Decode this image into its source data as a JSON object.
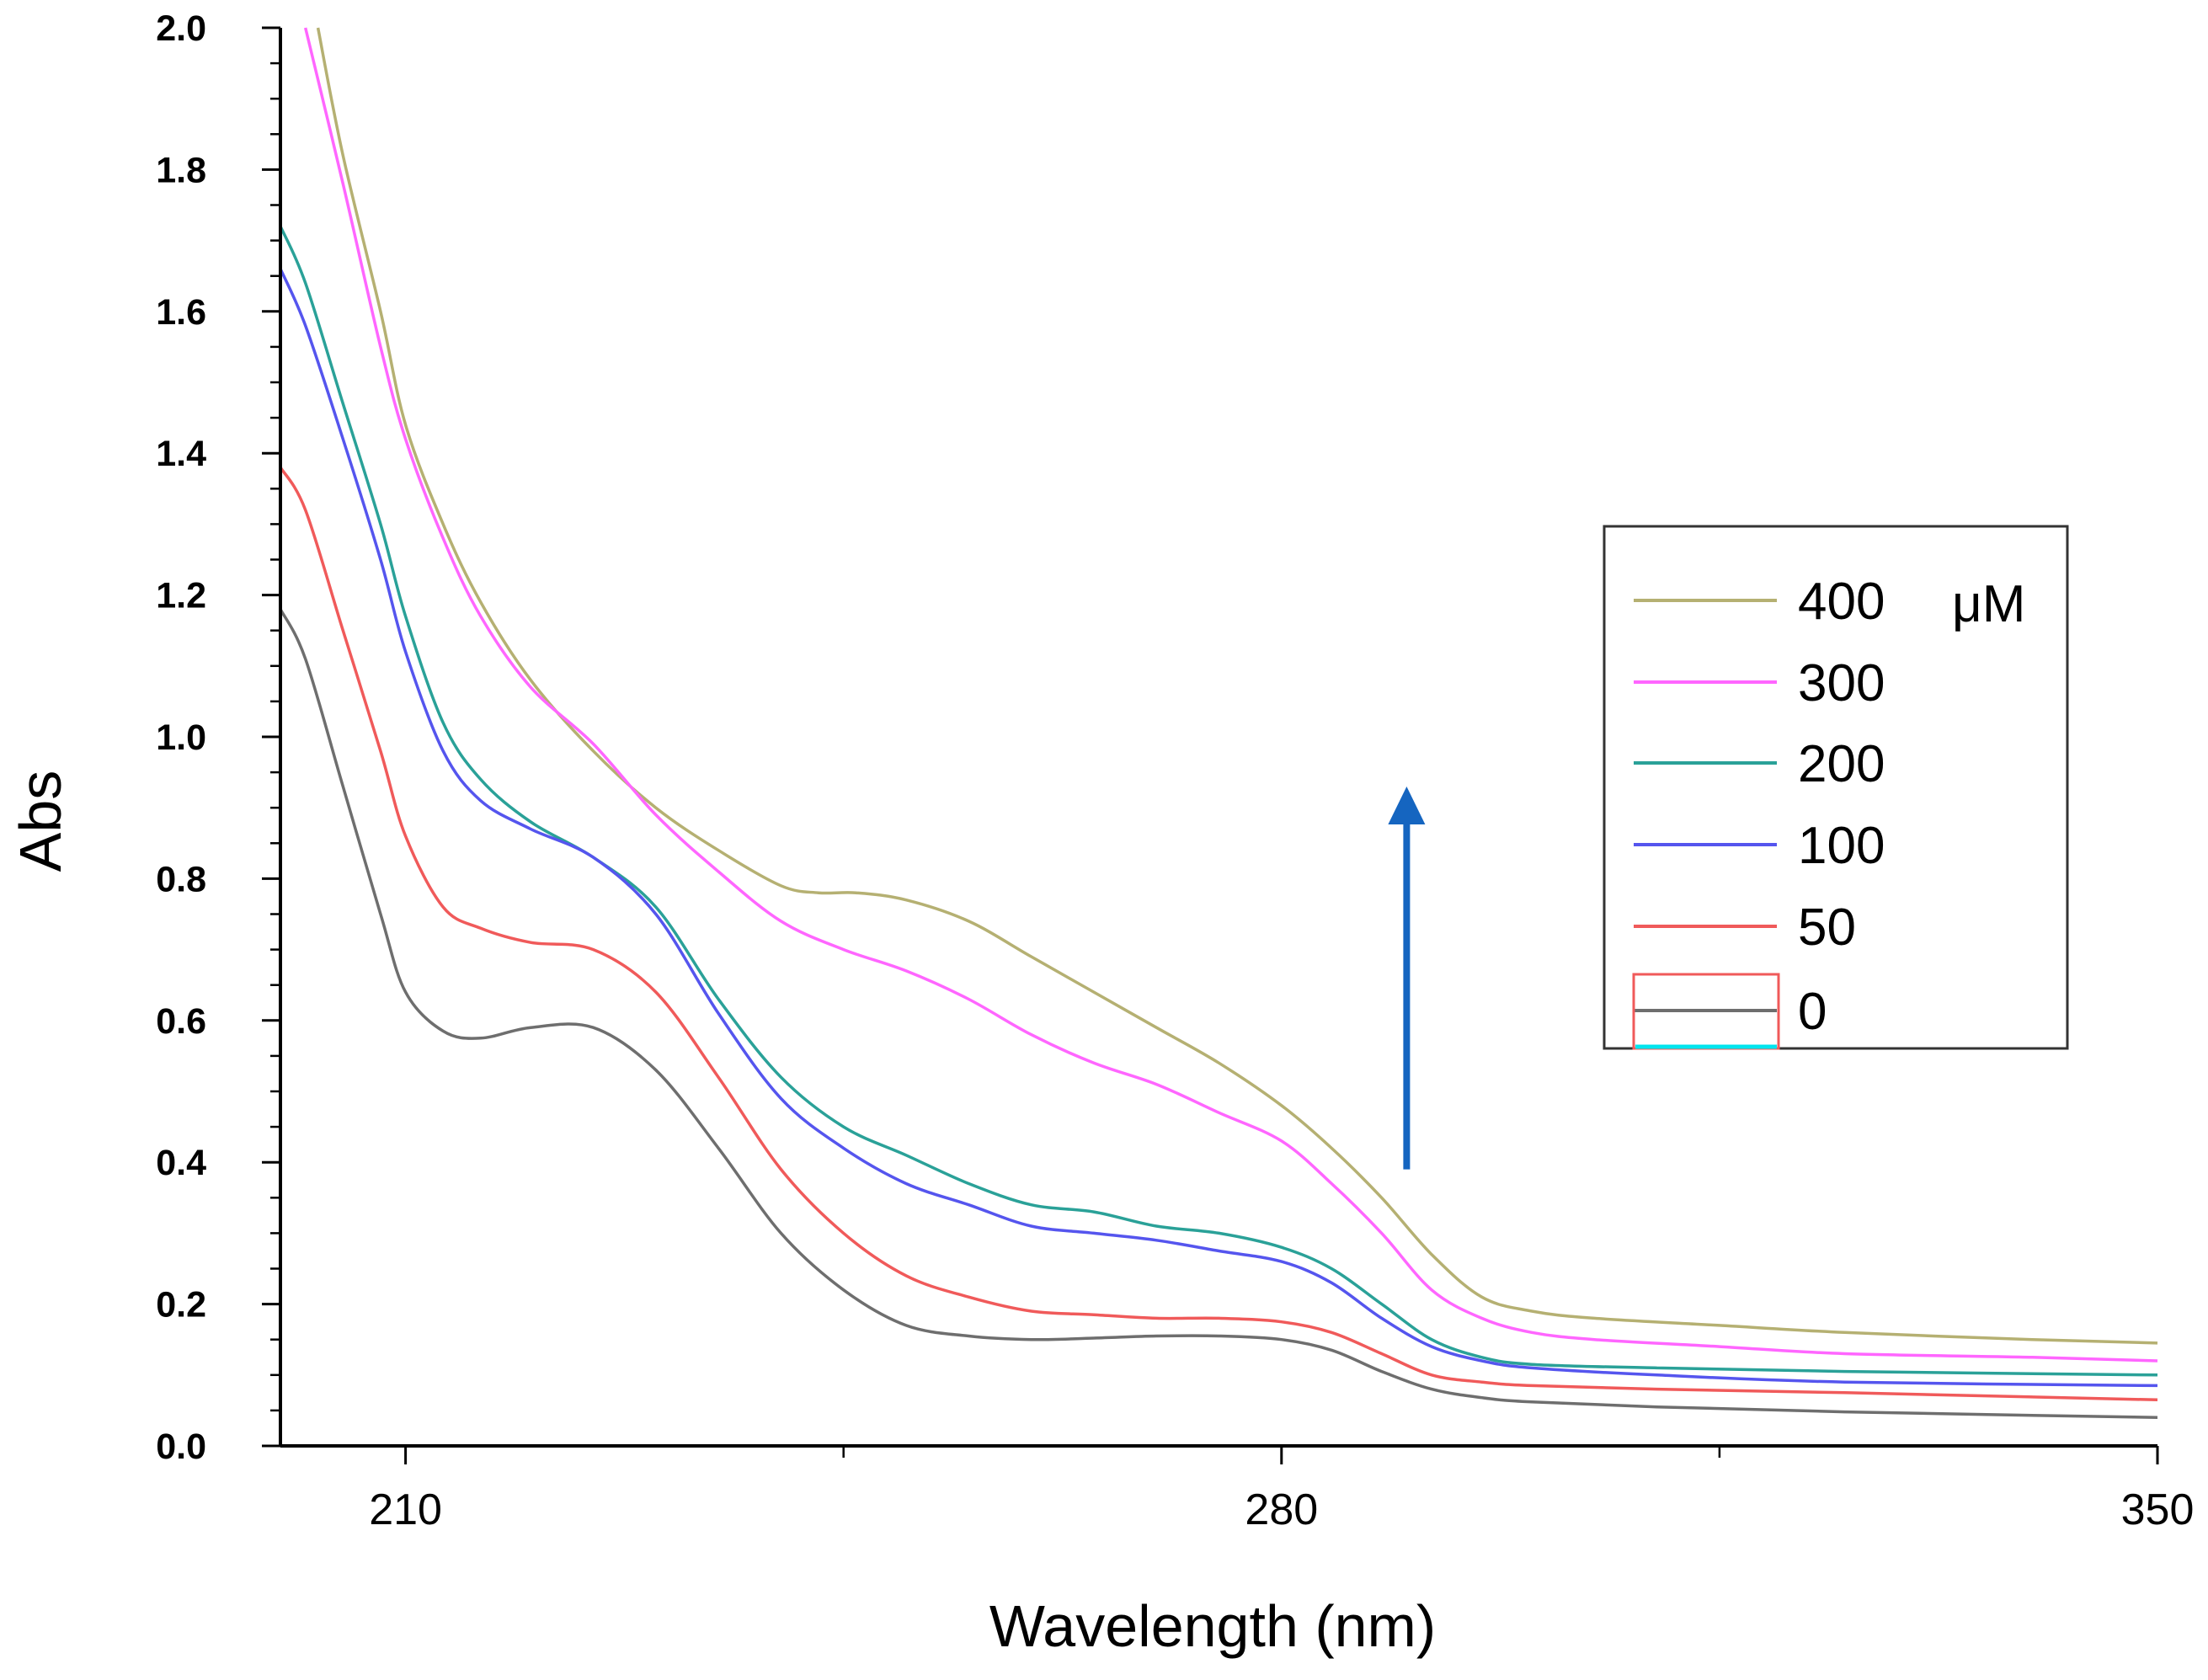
{
  "chart_data": {
    "type": "line",
    "title": "",
    "xlabel": "Wavelength (nm)",
    "ylabel": "Abs",
    "xlim": [
      200,
      350
    ],
    "ylim": [
      0.0,
      2.0
    ],
    "x_major_ticks": [
      210,
      280,
      350
    ],
    "x_minor_ticks": [
      245,
      315
    ],
    "y_ticks": [
      0.0,
      0.2,
      0.4,
      0.6,
      0.8,
      1.0,
      1.2,
      1.4,
      1.6,
      1.8,
      2.0
    ],
    "y_tick_labels": [
      "0.0",
      "0.2",
      "0.4",
      "0.6",
      "0.8",
      "1.0",
      "1.2",
      "1.4",
      "1.6",
      "1.8",
      "2.0"
    ],
    "x_tick_labels": [
      "210",
      "280",
      "350"
    ],
    "legend": {
      "position": "right",
      "unit": "μM"
    },
    "arrow": {
      "x": 290,
      "y_from": 0.39,
      "y_to": 0.93,
      "color": "#1565c0"
    },
    "series": [
      {
        "name": "400",
        "color": "#b5b072",
        "points": [
          [
            203,
            2.0
          ],
          [
            205,
            1.82
          ],
          [
            208,
            1.6
          ],
          [
            210,
            1.44
          ],
          [
            213,
            1.3
          ],
          [
            216,
            1.19
          ],
          [
            220,
            1.08
          ],
          [
            225,
            0.98
          ],
          [
            230,
            0.9
          ],
          [
            235,
            0.84
          ],
          [
            240,
            0.79
          ],
          [
            243,
            0.78
          ],
          [
            246,
            0.78
          ],
          [
            250,
            0.77
          ],
          [
            255,
            0.74
          ],
          [
            260,
            0.69
          ],
          [
            265,
            0.64
          ],
          [
            270,
            0.59
          ],
          [
            275,
            0.54
          ],
          [
            280,
            0.48
          ],
          [
            284,
            0.42
          ],
          [
            288,
            0.35
          ],
          [
            292,
            0.27
          ],
          [
            296,
            0.21
          ],
          [
            300,
            0.19
          ],
          [
            305,
            0.18
          ],
          [
            315,
            0.17
          ],
          [
            325,
            0.16
          ],
          [
            340,
            0.15
          ],
          [
            350,
            0.145
          ]
        ]
      },
      {
        "name": "300",
        "color": "#ff66ff",
        "points": [
          [
            202,
            2.0
          ],
          [
            205,
            1.78
          ],
          [
            208,
            1.55
          ],
          [
            210,
            1.42
          ],
          [
            213,
            1.28
          ],
          [
            216,
            1.17
          ],
          [
            220,
            1.07
          ],
          [
            225,
            0.99
          ],
          [
            230,
            0.89
          ],
          [
            235,
            0.81
          ],
          [
            240,
            0.74
          ],
          [
            245,
            0.7
          ],
          [
            250,
            0.67
          ],
          [
            255,
            0.63
          ],
          [
            260,
            0.58
          ],
          [
            265,
            0.54
          ],
          [
            270,
            0.51
          ],
          [
            275,
            0.47
          ],
          [
            280,
            0.43
          ],
          [
            284,
            0.37
          ],
          [
            288,
            0.3
          ],
          [
            292,
            0.22
          ],
          [
            296,
            0.18
          ],
          [
            300,
            0.16
          ],
          [
            305,
            0.15
          ],
          [
            315,
            0.14
          ],
          [
            325,
            0.13
          ],
          [
            340,
            0.125
          ],
          [
            350,
            0.12
          ]
        ]
      },
      {
        "name": "200",
        "color": "#2aa198",
        "points": [
          [
            200,
            1.72
          ],
          [
            202,
            1.64
          ],
          [
            205,
            1.47
          ],
          [
            208,
            1.3
          ],
          [
            210,
            1.17
          ],
          [
            213,
            1.02
          ],
          [
            216,
            0.94
          ],
          [
            220,
            0.88
          ],
          [
            225,
            0.83
          ],
          [
            230,
            0.76
          ],
          [
            235,
            0.63
          ],
          [
            240,
            0.52
          ],
          [
            245,
            0.45
          ],
          [
            250,
            0.41
          ],
          [
            255,
            0.37
          ],
          [
            260,
            0.34
          ],
          [
            265,
            0.33
          ],
          [
            270,
            0.31
          ],
          [
            275,
            0.3
          ],
          [
            280,
            0.28
          ],
          [
            284,
            0.25
          ],
          [
            288,
            0.2
          ],
          [
            292,
            0.15
          ],
          [
            296,
            0.125
          ],
          [
            300,
            0.115
          ],
          [
            310,
            0.11
          ],
          [
            325,
            0.105
          ],
          [
            350,
            0.1
          ]
        ]
      },
      {
        "name": "100",
        "color": "#5555ee",
        "points": [
          [
            200,
            1.66
          ],
          [
            202,
            1.58
          ],
          [
            205,
            1.42
          ],
          [
            208,
            1.25
          ],
          [
            210,
            1.12
          ],
          [
            213,
            0.98
          ],
          [
            216,
            0.91
          ],
          [
            220,
            0.87
          ],
          [
            225,
            0.83
          ],
          [
            230,
            0.75
          ],
          [
            235,
            0.61
          ],
          [
            240,
            0.49
          ],
          [
            245,
            0.42
          ],
          [
            250,
            0.37
          ],
          [
            255,
            0.34
          ],
          [
            260,
            0.31
          ],
          [
            265,
            0.3
          ],
          [
            270,
            0.29
          ],
          [
            275,
            0.275
          ],
          [
            280,
            0.26
          ],
          [
            284,
            0.23
          ],
          [
            288,
            0.18
          ],
          [
            292,
            0.14
          ],
          [
            296,
            0.12
          ],
          [
            300,
            0.11
          ],
          [
            310,
            0.1
          ],
          [
            325,
            0.09
          ],
          [
            350,
            0.085
          ]
        ]
      },
      {
        "name": "50",
        "color": "#f05a5a",
        "points": [
          [
            200,
            1.38
          ],
          [
            202,
            1.32
          ],
          [
            205,
            1.15
          ],
          [
            208,
            0.98
          ],
          [
            210,
            0.86
          ],
          [
            213,
            0.76
          ],
          [
            216,
            0.73
          ],
          [
            220,
            0.71
          ],
          [
            225,
            0.7
          ],
          [
            230,
            0.64
          ],
          [
            235,
            0.52
          ],
          [
            240,
            0.39
          ],
          [
            245,
            0.3
          ],
          [
            250,
            0.24
          ],
          [
            255,
            0.21
          ],
          [
            260,
            0.19
          ],
          [
            265,
            0.185
          ],
          [
            270,
            0.18
          ],
          [
            275,
            0.18
          ],
          [
            280,
            0.175
          ],
          [
            284,
            0.16
          ],
          [
            288,
            0.13
          ],
          [
            292,
            0.1
          ],
          [
            296,
            0.09
          ],
          [
            300,
            0.085
          ],
          [
            310,
            0.08
          ],
          [
            325,
            0.075
          ],
          [
            350,
            0.065
          ]
        ]
      },
      {
        "name": "0",
        "color": "#6e6e6e",
        "points": [
          [
            200,
            1.18
          ],
          [
            202,
            1.11
          ],
          [
            205,
            0.93
          ],
          [
            208,
            0.75
          ],
          [
            210,
            0.64
          ],
          [
            213,
            0.585
          ],
          [
            216,
            0.575
          ],
          [
            220,
            0.59
          ],
          [
            225,
            0.59
          ],
          [
            230,
            0.53
          ],
          [
            235,
            0.42
          ],
          [
            240,
            0.3
          ],
          [
            245,
            0.22
          ],
          [
            250,
            0.17
          ],
          [
            255,
            0.155
          ],
          [
            260,
            0.15
          ],
          [
            265,
            0.152
          ],
          [
            270,
            0.155
          ],
          [
            275,
            0.155
          ],
          [
            280,
            0.15
          ],
          [
            284,
            0.135
          ],
          [
            288,
            0.105
          ],
          [
            292,
            0.08
          ],
          [
            296,
            0.068
          ],
          [
            300,
            0.062
          ],
          [
            310,
            0.055
          ],
          [
            325,
            0.048
          ],
          [
            350,
            0.04
          ]
        ]
      }
    ]
  }
}
